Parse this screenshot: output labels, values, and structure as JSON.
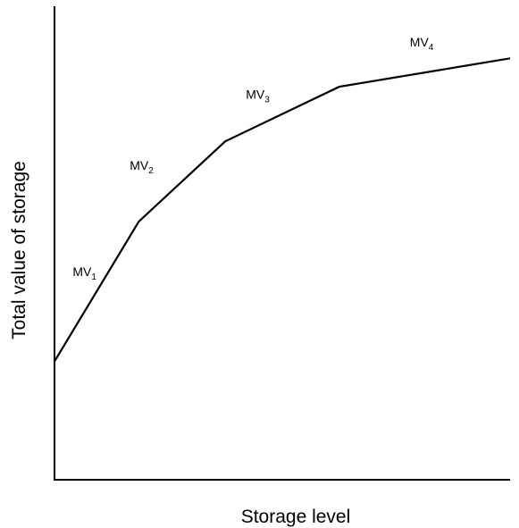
{
  "chart_data": {
    "type": "line",
    "title": "",
    "xlabel": "Storage level",
    "ylabel": "Total value of storage",
    "xlim": [
      0,
      100
    ],
    "ylim": [
      0,
      100
    ],
    "grid": false,
    "legend": "none",
    "ticks": false,
    "line_color": "#000000",
    "series": [
      {
        "x": [
          0,
          18.5,
          37.5,
          62.5,
          100
        ],
        "y": [
          25,
          54.5,
          71.5,
          83,
          89
        ]
      }
    ],
    "segment_labels": [
      {
        "base": "MV",
        "sub": "1",
        "x": 4,
        "y": 43
      },
      {
        "base": "MV",
        "sub": "2",
        "x": 16.5,
        "y": 65.5
      },
      {
        "base": "MV",
        "sub": "3",
        "x": 42,
        "y": 80.5
      },
      {
        "base": "MV",
        "sub": "4",
        "x": 78,
        "y": 91.5
      }
    ]
  }
}
